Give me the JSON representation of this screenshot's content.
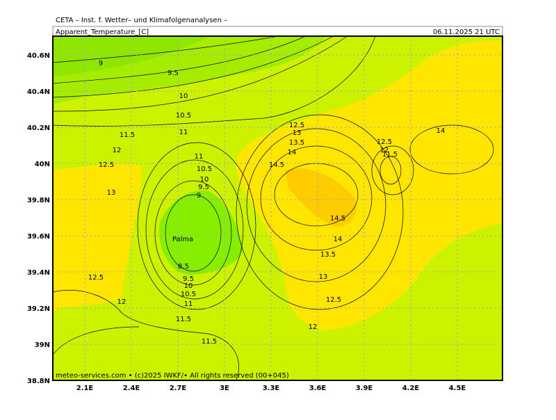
{
  "header": {
    "title": "CETA – Inst. f. Wetter– und Klimafolgenanalysen –",
    "field": "Apparent_Temperature_[C]",
    "valid_time": "06.11.2025 21 UTC"
  },
  "map": {
    "lat_labels": [
      "40.6N",
      "40.4N",
      "40.2N",
      "40N",
      "39.8N",
      "39.6N",
      "39.4N",
      "39.2N",
      "39N",
      "38.8N"
    ],
    "lon_labels": [
      "2.1E",
      "2.4E",
      "2.7E",
      "3E",
      "3.3E",
      "3.6E",
      "3.9E",
      "4.2E",
      "4.5E"
    ],
    "contour_labels": [
      "9",
      "9.5",
      "10",
      "10.5",
      "11",
      "11.5",
      "12",
      "12.5",
      "13",
      "11",
      "10.5",
      "10",
      "9.5",
      "9",
      "8.5",
      "9.5",
      "10",
      "10.5",
      "11",
      "11.5",
      "12.5",
      "12",
      "11.5",
      "12.5",
      "13",
      "13.5",
      "14",
      "14.5",
      "14.5",
      "14",
      "13.5",
      "13",
      "12.5",
      "12",
      "12.5",
      "12",
      "11.5",
      "14"
    ],
    "place_labels": [
      "Palma"
    ]
  },
  "footer": "meteo-services.com • (c)2025 IWKF/• All rights reserved (00+045)"
}
